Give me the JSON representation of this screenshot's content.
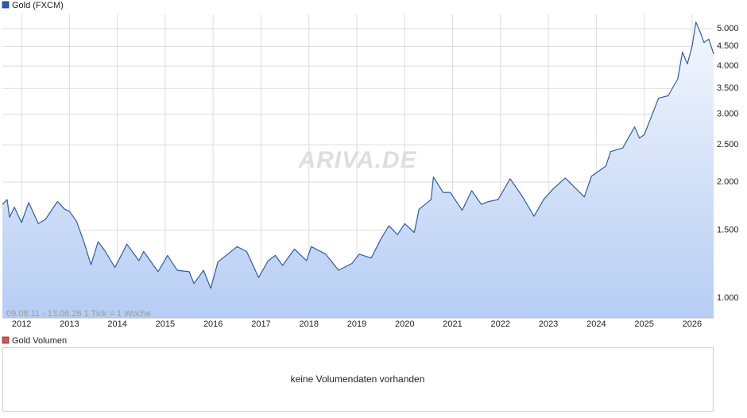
{
  "chart_data": [
    {
      "type": "line",
      "log_scale": true,
      "grid": true,
      "watermark": "ARIVA.DE",
      "footnote": "09.08.11 - 13.06.26   1 Tick = 1 Woche",
      "xlim": [
        2011.6,
        2026.45
      ],
      "xticks": [
        2012,
        2013,
        2014,
        2015,
        2016,
        2017,
        2018,
        2019,
        2020,
        2021,
        2022,
        2023,
        2024,
        2025,
        2026
      ],
      "ylim": [
        888,
        5450
      ],
      "yticks": [
        {
          "value": 1000,
          "label": "1.000"
        },
        {
          "value": 1500,
          "label": "1.500"
        },
        {
          "value": 2000,
          "label": "2.000"
        },
        {
          "value": 2500,
          "label": "2.500"
        },
        {
          "value": 3000,
          "label": "3.000"
        },
        {
          "value": 3500,
          "label": "3.500"
        },
        {
          "value": 4000,
          "label": "4.000"
        },
        {
          "value": 4500,
          "label": "4.500"
        },
        {
          "value": 5000,
          "label": "5.000"
        }
      ],
      "x": [
        2011.6,
        2011.7,
        2011.75,
        2011.85,
        2012.0,
        2012.15,
        2012.35,
        2012.5,
        2012.75,
        2012.9,
        2013.0,
        2013.15,
        2013.3,
        2013.45,
        2013.6,
        2013.75,
        2013.95,
        2014.2,
        2014.45,
        2014.55,
        2014.85,
        2015.05,
        2015.25,
        2015.5,
        2015.6,
        2015.8,
        2015.95,
        2016.1,
        2016.5,
        2016.7,
        2016.95,
        2017.15,
        2017.3,
        2017.45,
        2017.7,
        2017.95,
        2018.05,
        2018.35,
        2018.62,
        2018.9,
        2019.05,
        2019.3,
        2019.5,
        2019.67,
        2019.85,
        2020.0,
        2020.2,
        2020.3,
        2020.55,
        2020.6,
        2020.8,
        2020.95,
        2021.2,
        2021.4,
        2021.6,
        2021.75,
        2021.95,
        2022.2,
        2022.45,
        2022.7,
        2022.9,
        2023.1,
        2023.35,
        2023.75,
        2023.9,
        2024.2,
        2024.3,
        2024.55,
        2024.8,
        2024.9,
        2025.0,
        2025.3,
        2025.5,
        2025.7,
        2025.8,
        2025.9,
        2026.0,
        2026.08,
        2026.17,
        2026.25,
        2026.35,
        2026.45
      ],
      "series": [
        {
          "name": "Gold (FXCM)",
          "color": "#2a5db0",
          "values": [
            1750,
            1800,
            1620,
            1720,
            1570,
            1770,
            1560,
            1600,
            1780,
            1700,
            1680,
            1580,
            1400,
            1220,
            1400,
            1320,
            1200,
            1380,
            1250,
            1320,
            1170,
            1290,
            1180,
            1170,
            1090,
            1180,
            1060,
            1240,
            1360,
            1320,
            1130,
            1250,
            1290,
            1215,
            1340,
            1250,
            1360,
            1300,
            1180,
            1230,
            1300,
            1270,
            1420,
            1540,
            1460,
            1560,
            1480,
            1700,
            1800,
            2060,
            1880,
            1880,
            1690,
            1900,
            1750,
            1780,
            1800,
            2040,
            1840,
            1630,
            1800,
            1920,
            2050,
            1830,
            2070,
            2200,
            2400,
            2450,
            2780,
            2600,
            2650,
            3300,
            3350,
            3700,
            4350,
            4050,
            4500,
            5200,
            4900,
            4600,
            4700,
            4300
          ]
        }
      ]
    },
    {
      "type": "volume",
      "legend": "Gold Volumen",
      "legend_color": "#d9534f",
      "message": "keine Volumendaten vorhanden"
    }
  ]
}
